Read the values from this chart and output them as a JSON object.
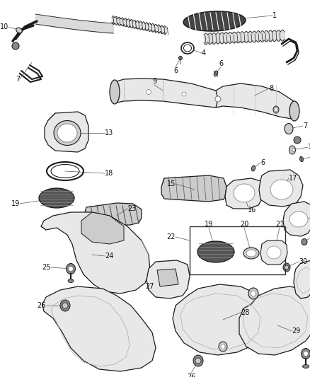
{
  "bg_color": "#ffffff",
  "fig_width": 4.39,
  "fig_height": 5.33,
  "dpi": 100,
  "line_color": "#1a1a1a",
  "fill_light": "#e8e8e8",
  "fill_mid": "#cccccc",
  "fill_dark": "#888888",
  "fill_vdark": "#444444",
  "label_color": "#111111",
  "leader_color": "#555555"
}
